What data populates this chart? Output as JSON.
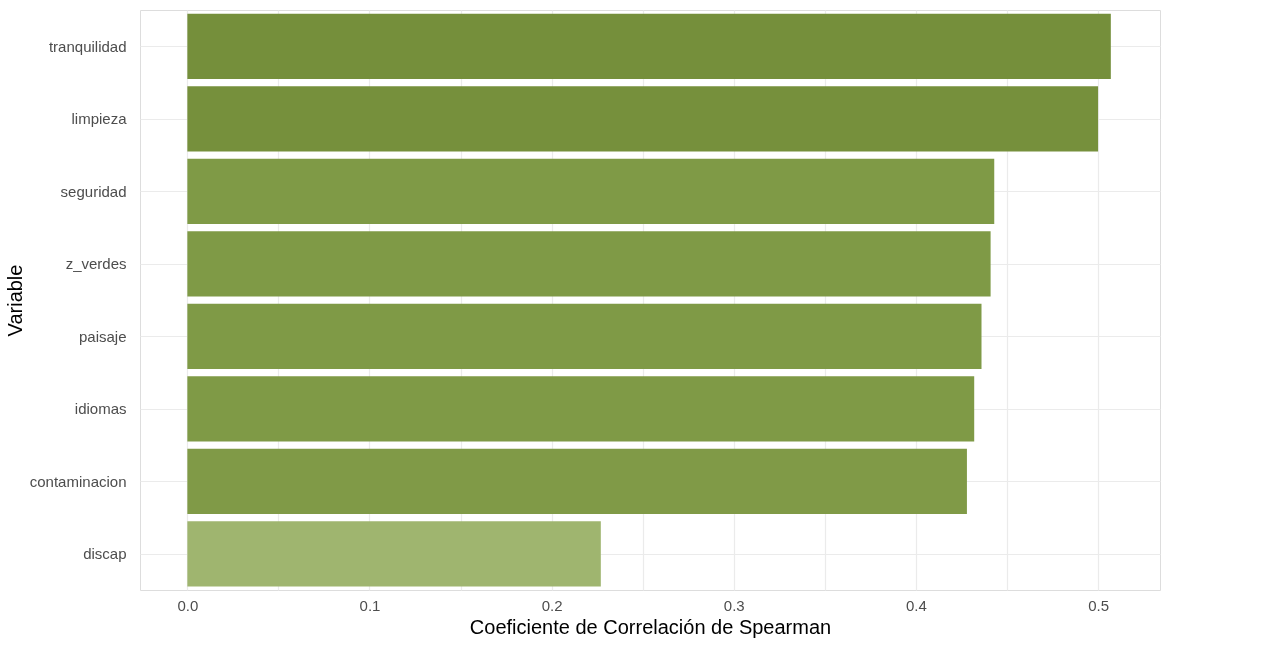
{
  "chart_data": {
    "type": "bar",
    "orientation": "horizontal",
    "xlabel": "Coeficiente de Correlación de Spearman",
    "ylabel": "Variable",
    "categories": [
      "tranquilidad",
      "limpieza",
      "seguridad",
      "z_verdes",
      "paisaje",
      "idiomas",
      "contaminacion",
      "discap"
    ],
    "values": [
      0.507,
      0.5,
      0.443,
      0.441,
      0.436,
      0.432,
      0.428,
      0.227
    ],
    "colors": [
      "#758f3b",
      "#76903c",
      "#7f9a46",
      "#7f9a46",
      "#7f9a46",
      "#7f9a46",
      "#809a47",
      "#9fb56f"
    ],
    "xlim": [
      -0.026,
      0.534
    ],
    "xticks": [
      {
        "value": 0.0,
        "label": "0.0"
      },
      {
        "value": 0.05,
        "label": null
      },
      0.1,
      {
        "value": 0.15,
        "label": null
      },
      0.2,
      {
        "value": 0.25,
        "label": null
      },
      0.3,
      {
        "value": 0.35,
        "label": null
      },
      0.4,
      {
        "value": 0.45,
        "label": null
      },
      0.5
    ],
    "grid": true
  }
}
